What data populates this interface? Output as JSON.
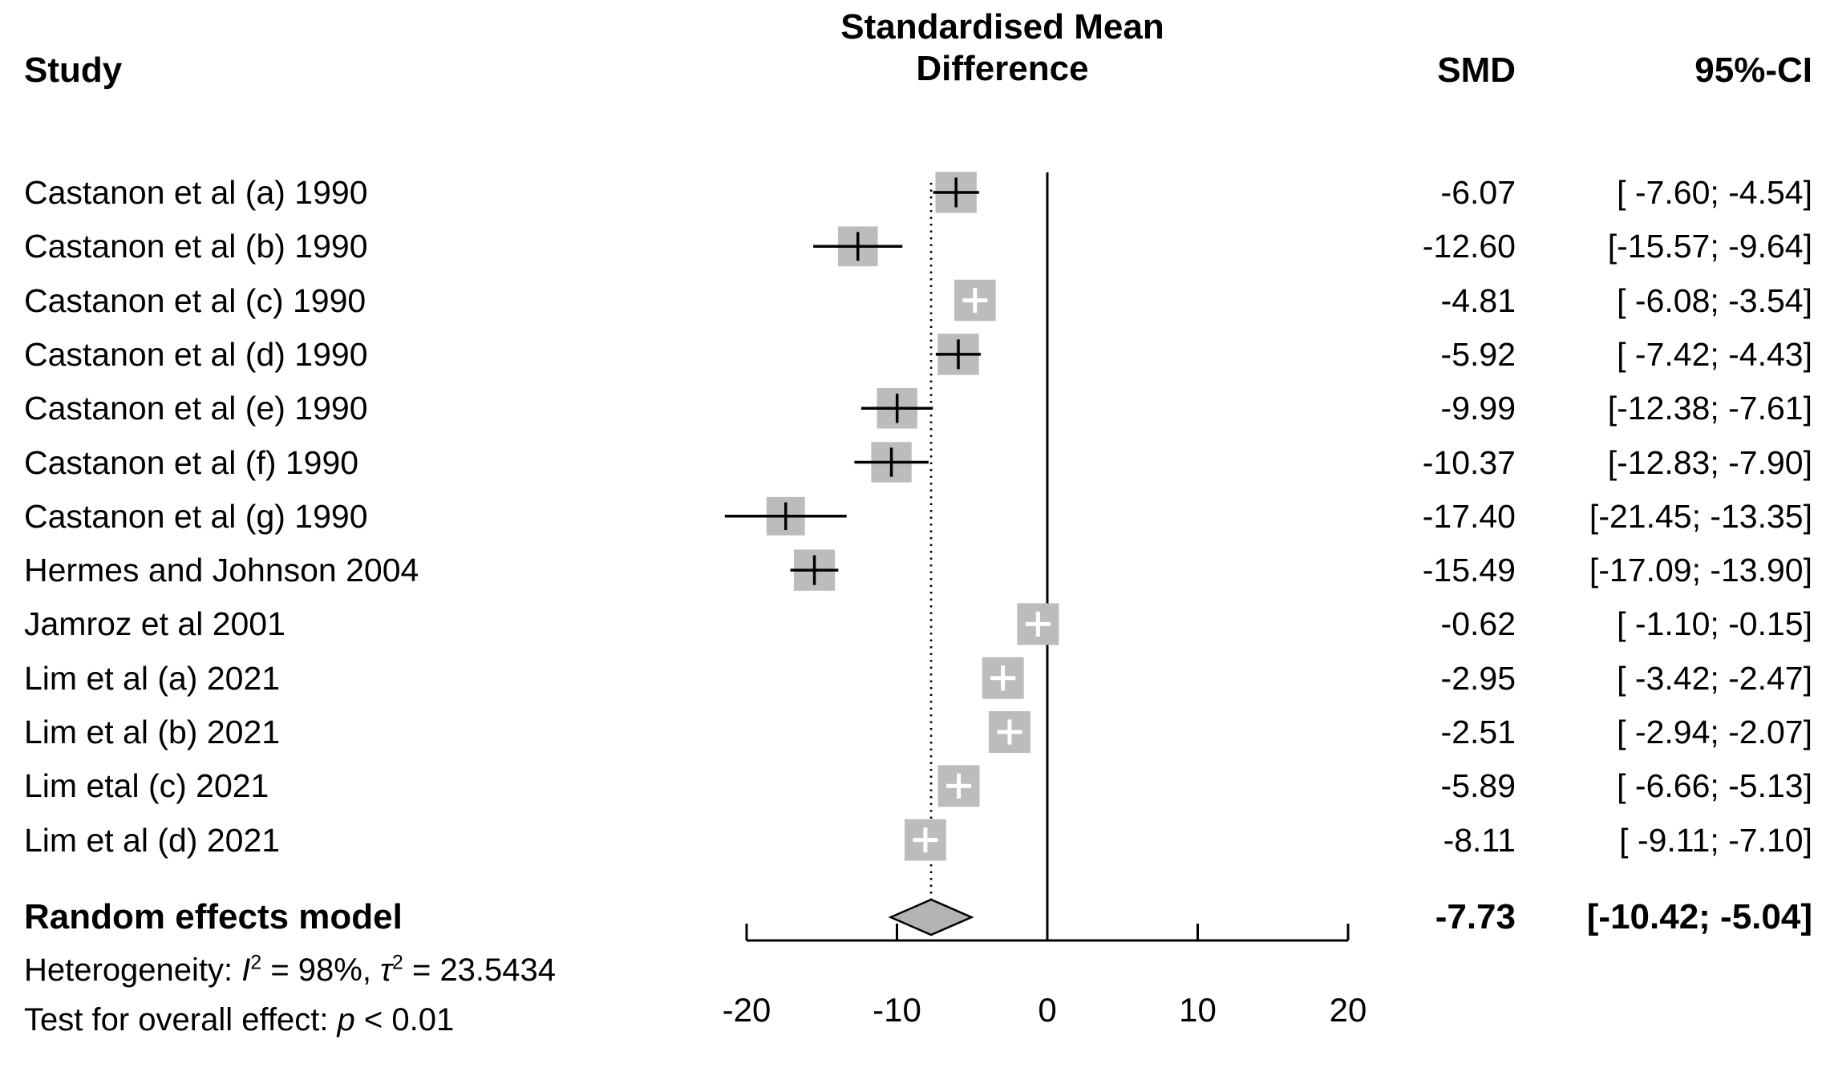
{
  "header": {
    "study": "Study",
    "effect_title_line1": "Standardised Mean",
    "effect_title_line2": "Difference",
    "smd": "SMD",
    "ci": "95%-CI"
  },
  "chart_data": {
    "type": "forest",
    "title": "Standardised Mean Difference",
    "x_axis": {
      "min": -20,
      "max": 20,
      "ticks": [
        -20,
        -10,
        0,
        10,
        20
      ],
      "null_value": 0
    },
    "studies": [
      {
        "label": "Castanon et al (a) 1990",
        "smd": -6.07,
        "ci_lower": -7.6,
        "ci_upper": -4.54,
        "smd_text": "-6.07",
        "ci_text": "[ -7.60; -4.54]"
      },
      {
        "label": "Castanon et al (b) 1990",
        "smd": -12.6,
        "ci_lower": -15.57,
        "ci_upper": -9.64,
        "smd_text": "-12.60",
        "ci_text": "[-15.57; -9.64]"
      },
      {
        "label": "Castanon et al (c) 1990",
        "smd": -4.81,
        "ci_lower": -6.08,
        "ci_upper": -3.54,
        "smd_text": "-4.81",
        "ci_text": "[ -6.08; -3.54]"
      },
      {
        "label": "Castanon et al (d) 1990",
        "smd": -5.92,
        "ci_lower": -7.42,
        "ci_upper": -4.43,
        "smd_text": "-5.92",
        "ci_text": "[ -7.42; -4.43]"
      },
      {
        "label": "Castanon et al (e) 1990",
        "smd": -9.99,
        "ci_lower": -12.38,
        "ci_upper": -7.61,
        "smd_text": "-9.99",
        "ci_text": "[-12.38; -7.61]"
      },
      {
        "label": "Castanon et al (f) 1990",
        "smd": -10.37,
        "ci_lower": -12.83,
        "ci_upper": -7.9,
        "smd_text": "-10.37",
        "ci_text": "[-12.83; -7.90]"
      },
      {
        "label": "Castanon et al (g) 1990",
        "smd": -17.4,
        "ci_lower": -21.45,
        "ci_upper": -13.35,
        "smd_text": "-17.40",
        "ci_text": "[-21.45; -13.35]"
      },
      {
        "label": "Hermes and Johnson 2004",
        "smd": -15.49,
        "ci_lower": -17.09,
        "ci_upper": -13.9,
        "smd_text": "-15.49",
        "ci_text": "[-17.09; -13.90]"
      },
      {
        "label": "Jamroz et al 2001",
        "smd": -0.62,
        "ci_lower": -1.1,
        "ci_upper": -0.15,
        "smd_text": "-0.62",
        "ci_text": "[ -1.10; -0.15]"
      },
      {
        "label": "Lim et al (a) 2021",
        "smd": -2.95,
        "ci_lower": -3.42,
        "ci_upper": -2.47,
        "smd_text": "-2.95",
        "ci_text": "[ -3.42; -2.47]"
      },
      {
        "label": "Lim et al (b) 2021",
        "smd": -2.51,
        "ci_lower": -2.94,
        "ci_upper": -2.07,
        "smd_text": "-2.51",
        "ci_text": "[ -2.94; -2.07]"
      },
      {
        "label": "Lim etal (c) 2021",
        "smd": -5.89,
        "ci_lower": -6.66,
        "ci_upper": -5.13,
        "smd_text": "-5.89",
        "ci_text": "[ -6.66; -5.13]"
      },
      {
        "label": "Lim et al (d) 2021",
        "smd": -8.11,
        "ci_lower": -9.11,
        "ci_upper": -7.1,
        "smd_text": "-8.11",
        "ci_text": "[ -9.11; -7.10]"
      }
    ],
    "pooled": {
      "label": "Random effects model",
      "smd": -7.73,
      "ci_lower": -10.42,
      "ci_upper": -5.04,
      "smd_text": "-7.73",
      "ci_text": "[-10.42; -5.04]"
    },
    "heterogeneity": {
      "prefix": "Heterogeneity: ",
      "i2_symbol": "I",
      "i2_sup": "2",
      "i2_eq": " = 98%, ",
      "tau_symbol": "τ",
      "tau_sup": "2",
      "tau_eq": " = ",
      "tau2_value": "23.5434"
    },
    "overall_test": {
      "prefix": "Test for overall effect: ",
      "p_symbol": "p",
      "p_value": " < 0.01"
    },
    "colors": {
      "square": "#bcbcbc",
      "diamond": "#b3b3b3",
      "line": "#000000",
      "background": "#ffffff"
    }
  }
}
